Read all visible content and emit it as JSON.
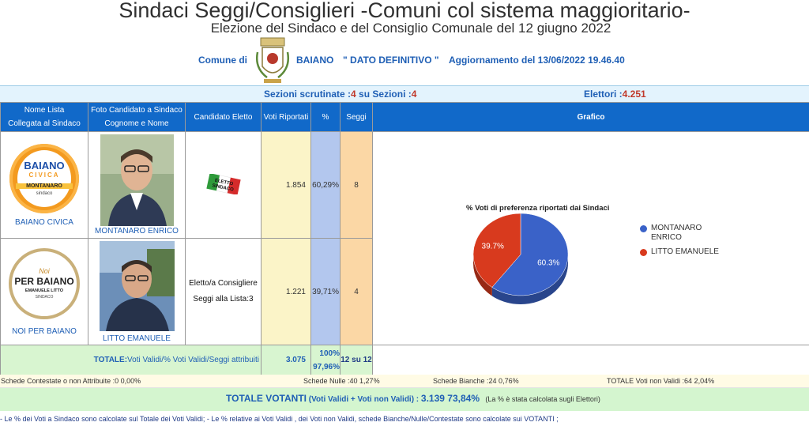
{
  "header": {
    "title": "Sindaci Seggi/Consiglieri -Comuni col sistema maggioritario-",
    "subtitle": "Elezione del Sindaco e del Consiglio Comunale del 12 giugno 2022",
    "comune_label": "Comune di",
    "comune_name": "BAIANO",
    "dato_label": "\" DATO   DEFINITIVO \"",
    "aggiornamento": "Aggiornamento del  13/06/2022 19.46.40"
  },
  "info_bar": {
    "sezioni_label": "Sezioni scrutinate :",
    "sezioni_value": "4",
    "su_sezioni_label": " su Sezioni :",
    "su_sezioni_value": "4",
    "elettori_label": "Elettori :",
    "elettori_value": "4.251"
  },
  "table": {
    "headers": {
      "nome_lista": "Nome Lista",
      "collegata": "Collegata al Sindaco",
      "foto": "Foto Candidato a Sindaco",
      "cognome": "Cognome e Nome",
      "candidato_eletto": "Candidato Eletto",
      "voti": "Voti Riportati",
      "perc": "%",
      "seggi": "Seggi",
      "grafico": "Grafico"
    },
    "rows": [
      {
        "lista": "BAIANO CIVICA",
        "candidato": "MONTANARO ENRICO",
        "eletto_badge": "ELETTO SINDACO",
        "voti": "1.854",
        "perc": "60,29%",
        "seggi": "8",
        "logo_text": [
          "BAIANO",
          "CIVICA",
          "MONTANARO",
          "sindaco"
        ]
      },
      {
        "lista": "NOI PER BAIANO",
        "candidato": "LITTO EMANUELE",
        "eletto_text_1": "Eletto/a Consigliere",
        "eletto_text_2": "Seggi alla Lista:3",
        "voti": "1.221",
        "perc": "39,71%",
        "seggi": "4",
        "logo_text": [
          "Noi",
          "PER BAIANO",
          "EMANUELE LITTO",
          "SINDACO"
        ]
      }
    ],
    "totale": {
      "label": "TOTALE:",
      "desc": "Voti Validi/% Voti Validi/Seggi attribuiti",
      "voti": "3.075",
      "perc_1": "100%",
      "perc_2": "97,96%",
      "seggi": "12 su 12"
    }
  },
  "chart_data": {
    "type": "pie",
    "title": "% Voti di preferenza riportati dai Sindaci",
    "categories": [
      "MONTANARO ENRICO",
      "LITTO EMANUELE"
    ],
    "values": [
      60.3,
      39.7
    ],
    "labels": [
      "60.3%",
      "39.7%"
    ],
    "colors": [
      "#3a62c8",
      "#d83a1e"
    ],
    "legend_lines": [
      [
        "MONTANARO",
        "ENRICO"
      ],
      [
        "LITTO EMANUELE"
      ]
    ],
    "legend": "right"
  },
  "footer": {
    "contestate": "Schede Contestate o non Attribuite :0   0,00%",
    "nulle": "Schede Nulle :40   1,27%",
    "bianche": "Schede Bianche :24   0,76%",
    "non_validi": "TOTALE Voti non Validi :64   2,04%",
    "votanti_label": "TOTALE VOTANTI",
    "votanti_desc": " (Voti Validi + Voti non Validi) : ",
    "votanti_value": "3.139  73,84%",
    "votanti_note": "(La % è stata calcolata sugli Elettori)",
    "note": "- Le % dei Voti a Sindaco sono calcolate sul Totale dei Voti Validi; - Le % relative ai Voti Validi , dei Voti non Validi, schede Bianche/Nulle/Contestate sono calcolate sui VOTANTI ;"
  },
  "colors": {
    "header_blue": "#1169c9",
    "text_blue": "#1f5fb5",
    "accent_red": "#c0392b"
  }
}
